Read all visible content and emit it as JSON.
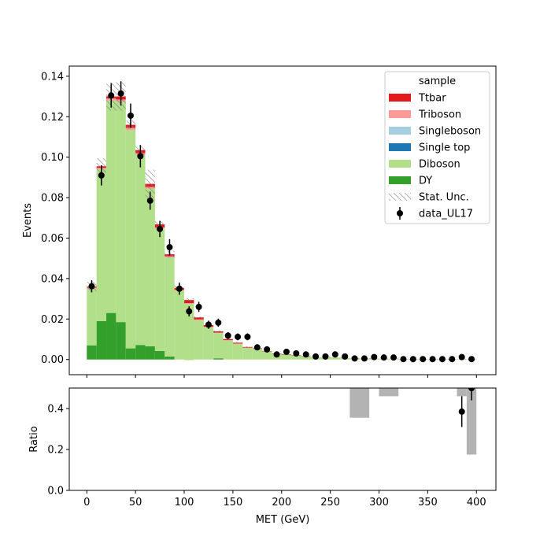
{
  "chart_data": [
    {
      "type": "bar",
      "stacked": true,
      "ylabel": "Events",
      "xlim": [
        -18,
        420
      ],
      "ylim": [
        -0.0075,
        0.145
      ],
      "yticks": [
        "0.00",
        "0.02",
        "0.04",
        "0.06",
        "0.08",
        "0.10",
        "0.12",
        "0.14"
      ],
      "ytick_values": [
        0,
        0.02,
        0.04,
        0.06,
        0.08,
        0.1,
        0.12,
        0.14
      ],
      "xtick_values": [
        0,
        50,
        100,
        150,
        200,
        250,
        300,
        350,
        400
      ],
      "bin_edges": [
        0,
        10,
        20,
        30,
        40,
        50,
        60,
        70,
        80,
        90,
        100,
        110,
        120,
        130,
        140,
        150,
        160,
        170,
        180,
        190,
        200,
        210,
        220,
        230,
        240,
        250,
        260,
        270,
        280,
        290,
        300,
        310,
        320,
        330,
        340,
        350,
        360,
        370,
        380,
        390,
        400
      ],
      "legend_title": "sample",
      "legend_position": "top-right",
      "series": [
        {
          "name": "DY",
          "color": "#33a02c",
          "values": [
            0.007,
            0.019,
            0.023,
            0.0185,
            0.0055,
            0.0072,
            0.0065,
            0.0042,
            0.0015,
            0,
            -0.0003,
            0,
            0,
            0.0006,
            0,
            0,
            0,
            0,
            0,
            0,
            0,
            0,
            0,
            0,
            0,
            0,
            0,
            0,
            0,
            0,
            0,
            0,
            0,
            0,
            0,
            0,
            0,
            0,
            0,
            0
          ]
        },
        {
          "name": "Diboson",
          "color": "#b2df8a",
          "values": [
            0.028,
            0.075,
            0.105,
            0.109,
            0.108,
            0.094,
            0.078,
            0.0605,
            0.049,
            0.034,
            0.0278,
            0.0195,
            0.016,
            0.0125,
            0.0095,
            0.0078,
            0.0058,
            0.0053,
            0.004,
            0.0028,
            0.0025,
            0.002,
            0.0015,
            0.0012,
            0.0012,
            0.001,
            0.0008,
            0.0006,
            0.0005,
            0.0005,
            0.0004,
            0.0004,
            0.0003,
            0.0003,
            0.0002,
            0.0002,
            0.0002,
            0.0002,
            0.0002,
            0.0002
          ]
        },
        {
          "name": "Single top",
          "color": "#1f78b4",
          "values": [
            0,
            0,
            0,
            0,
            0,
            0,
            0,
            0,
            0,
            0,
            0,
            0,
            0,
            0,
            0,
            0,
            0,
            0,
            0,
            0,
            0,
            0,
            0,
            0,
            0,
            0,
            0,
            0,
            0,
            0,
            0,
            0,
            0,
            0,
            0,
            0,
            0,
            0,
            0,
            0
          ]
        },
        {
          "name": "Singleboson",
          "color": "#a6cee3",
          "values": [
            0,
            0,
            0,
            0,
            0,
            0,
            0,
            0,
            0,
            0,
            0,
            0,
            0,
            0,
            0,
            0,
            0,
            0,
            0,
            0,
            0,
            0,
            0,
            0,
            0,
            0,
            0,
            0,
            0,
            0,
            0,
            0,
            0,
            0,
            0,
            0,
            0,
            0,
            0,
            0
          ]
        },
        {
          "name": "Triboson",
          "color": "#fb9a99",
          "values": [
            0.0005,
            0.0008,
            0.001,
            0.001,
            0.001,
            0.0008,
            0.0008,
            0.0006,
            0.0005,
            0.0004,
            0.0004,
            0.0003,
            0.0002,
            0.0002,
            0.0001,
            0.0001,
            0.0001,
            0,
            0,
            0,
            0,
            0,
            0,
            0,
            0,
            0,
            0,
            0,
            0,
            0,
            0,
            0,
            0,
            0,
            0,
            0,
            0,
            0,
            0,
            0
          ]
        },
        {
          "name": "Ttbar",
          "color": "#e31a1c",
          "values": [
            0.0005,
            0.0007,
            0.001,
            0.0015,
            0.0015,
            0.0015,
            0.0015,
            0.0015,
            0.001,
            0.001,
            0.0015,
            0.001,
            0.0008,
            0.0006,
            0.0005,
            0.0004,
            0.0003,
            0.0002,
            0.0002,
            0.0001,
            0.0001,
            0.0001,
            0.0001,
            0,
            0,
            0,
            0,
            0,
            0,
            0,
            0,
            0,
            0,
            0,
            0,
            0,
            0,
            0,
            0,
            0
          ]
        }
      ],
      "stat_unc": {
        "name": "Stat. Unc.",
        "values": [
          0.0025,
          0.004,
          0.007,
          0.007,
          0.002,
          0.0025,
          0.007,
          0.0018,
          0.0018,
          0.0012,
          0.0008,
          0.0006,
          0.0005,
          0.0005,
          0.0004,
          0.0004,
          0.0003,
          0.0003,
          0.0002,
          0.0002,
          0.0002,
          0.0002,
          0.0002,
          0.0002,
          0.0002,
          0.0002,
          0.0002,
          0.0002,
          0.0002,
          0.0002,
          0.0002,
          0.0002,
          0.0002,
          0.0002,
          0.0002,
          0.0002,
          0.0002,
          0.0002,
          0.0002,
          0.0002
        ]
      },
      "data_points": {
        "name": "data_UL17",
        "x": [
          5,
          15,
          25,
          35,
          45,
          55,
          65,
          75,
          85,
          95,
          105,
          115,
          125,
          135,
          145,
          155,
          165,
          175,
          185,
          195,
          205,
          215,
          225,
          235,
          245,
          255,
          265,
          275,
          285,
          295,
          305,
          315,
          325,
          335,
          345,
          355,
          365,
          375,
          385,
          395
        ],
        "y": [
          0.0362,
          0.091,
          0.1305,
          0.1315,
          0.1205,
          0.1005,
          0.0785,
          0.0645,
          0.0555,
          0.035,
          0.0238,
          0.026,
          0.0172,
          0.0182,
          0.0118,
          0.0112,
          0.0112,
          0.006,
          0.005,
          0.0025,
          0.0038,
          0.003,
          0.0025,
          0.0015,
          0.0015,
          0.0025,
          0.0015,
          0.0005,
          0.0005,
          0.0012,
          0.001,
          0.001,
          0.0002,
          0.0002,
          0.0002,
          0.0002,
          0.0002,
          0.0002,
          0.0012,
          0.0002
        ],
        "err": [
          0.003,
          0.005,
          0.006,
          0.006,
          0.006,
          0.0055,
          0.0045,
          0.004,
          0.004,
          0.003,
          0.0025,
          0.0025,
          0.002,
          0.002,
          0.0017,
          0.0017,
          0.0017,
          0.0012,
          0.0012,
          0.0008,
          0.001,
          0.0009,
          0.0008,
          0.0006,
          0.0006,
          0.0008,
          0.0006,
          0.0004,
          0.0004,
          0.0005,
          0.0005,
          0.0005,
          0.0003,
          0.0003,
          0.0003,
          0.0003,
          0.0003,
          0.0003,
          0.0005,
          0.0003
        ]
      }
    },
    {
      "type": "bar",
      "xlabel": "MET (GeV)",
      "ylabel": "Ratio",
      "xlim": [
        -18,
        420
      ],
      "ylim": [
        0.0,
        0.5
      ],
      "yticks": [
        "0.0",
        "0.2",
        "0.4"
      ],
      "ytick_values": [
        0.0,
        0.2,
        0.4
      ],
      "xticks": [
        "0",
        "50",
        "100",
        "150",
        "200",
        "250",
        "300",
        "350",
        "400"
      ],
      "xtick_values": [
        0,
        50,
        100,
        150,
        200,
        250,
        300,
        350,
        400
      ],
      "unc_bands": [
        {
          "x0": 270,
          "x1": 290,
          "y0": 0.355,
          "y1": 0.5
        },
        {
          "x0": 300,
          "x1": 320,
          "y0": 0.46,
          "y1": 0.5
        },
        {
          "x0": 380,
          "x1": 390,
          "y0": 0.46,
          "y1": 0.5
        },
        {
          "x0": 390,
          "x1": 400,
          "y0": 0.175,
          "y1": 0.5
        }
      ],
      "points": [
        {
          "x": 385,
          "y": 0.385,
          "err": 0.075
        },
        {
          "x": 395,
          "y": 0.5,
          "err": 0.06
        }
      ]
    }
  ],
  "colors": {
    "stat_unc_hatch": "#808080",
    "ratio_band": "#b3b3b3",
    "data": "#000000"
  }
}
